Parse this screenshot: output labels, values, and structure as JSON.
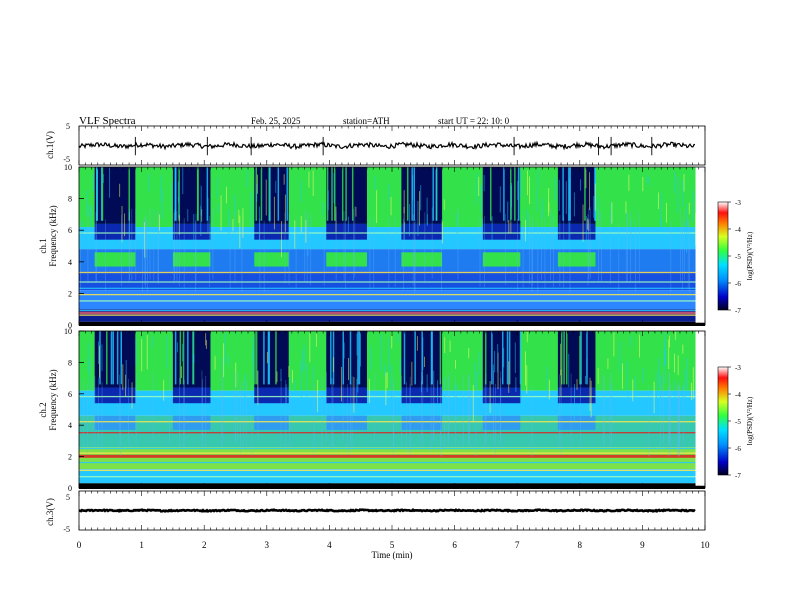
{
  "header": {
    "title": "VLF  Spectra",
    "date": "Feb. 25, 2025",
    "station": "station=ATH",
    "start": "start  UT  =   22: 10: 0"
  },
  "chart_data": [
    {
      "id": "ch1v",
      "type": "line",
      "ylabel": "ch.1(V)",
      "yticks": [
        "5",
        "-5"
      ],
      "ylim": [
        -5,
        5
      ],
      "xlim": [
        0,
        10
      ],
      "data_end_min": 9.85,
      "series": [
        {
          "baseline": 0.0,
          "noise_amplitude": 0.6,
          "spikes": [
            0.9,
            2.05,
            2.75,
            3.9,
            6.95,
            8.3,
            8.5,
            9.15
          ]
        }
      ]
    },
    {
      "id": "ch1spec",
      "type": "heatmap",
      "ylabel_top": "ch.1",
      "ylabel": "Frequency  (kHz)",
      "yticks": [
        "0",
        "2",
        "4",
        "6",
        "8",
        "10"
      ],
      "ylim": [
        0,
        10
      ],
      "xlim": [
        0,
        10
      ],
      "data_end_min": 9.85,
      "burst_intervals_min": [
        [
          0.25,
          0.9
        ],
        [
          1.5,
          2.1
        ],
        [
          2.8,
          3.35
        ],
        [
          3.95,
          4.6
        ],
        [
          5.15,
          5.8
        ],
        [
          6.45,
          7.05
        ],
        [
          7.65,
          8.25
        ]
      ],
      "colorbar": {
        "label": "log(PSD)(V²/Hz)",
        "ticks": [
          "-3",
          "-4",
          "-5",
          "-6",
          "-7"
        ],
        "range": [
          -7,
          -3
        ]
      }
    },
    {
      "id": "ch2spec",
      "type": "heatmap",
      "ylabel_top": "ch.2",
      "ylabel": "Frequency  (kHz)",
      "yticks": [
        "0",
        "2",
        "4",
        "6",
        "8",
        "10"
      ],
      "ylim": [
        0,
        10
      ],
      "xlim": [
        0,
        10
      ],
      "data_end_min": 9.85,
      "burst_intervals_min": [
        [
          0.25,
          0.9
        ],
        [
          1.5,
          2.1
        ],
        [
          2.8,
          3.35
        ],
        [
          3.95,
          4.6
        ],
        [
          5.15,
          5.8
        ],
        [
          6.45,
          7.05
        ],
        [
          7.65,
          8.25
        ]
      ],
      "colorbar": {
        "label": "log(PSD)(V²/Hz)",
        "ticks": [
          "-3",
          "-4",
          "-5",
          "-6",
          "-7"
        ],
        "range": [
          -7,
          -3
        ]
      }
    },
    {
      "id": "ch3v",
      "type": "line",
      "ylabel": "ch.3(V)",
      "yticks": [
        "5",
        "-5"
      ],
      "ylim": [
        -5,
        5
      ],
      "xlim": [
        0,
        10
      ],
      "data_end_min": 9.85,
      "series": [
        {
          "baseline": 0.0,
          "noise_amplitude": 0.15,
          "spikes": []
        }
      ]
    }
  ],
  "xaxis": {
    "label": "Time  (min)",
    "ticks": [
      "0",
      "1",
      "2",
      "3",
      "4",
      "5",
      "6",
      "7",
      "8",
      "9",
      "10"
    ]
  },
  "colors": {
    "background_spec": "#1a3fd0",
    "burst": "#000a55",
    "green": "#33e24a",
    "cyan": "#22c8ff",
    "red": "#e02020",
    "line": "#000000"
  }
}
